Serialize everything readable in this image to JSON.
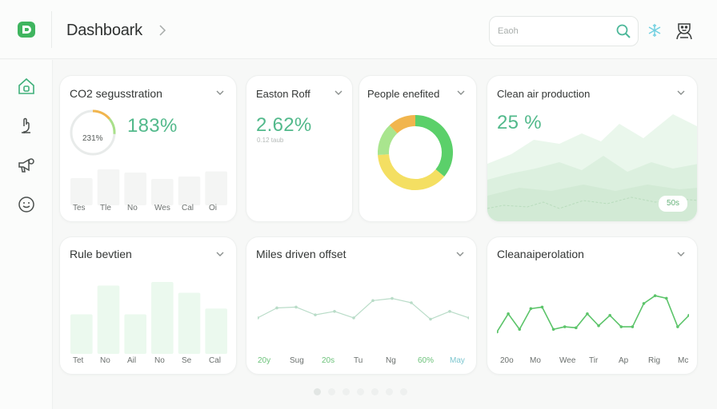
{
  "header": {
    "title": "Dashboark",
    "search_placeholder": "Eaoh"
  },
  "icons": {
    "logo": "app-logo",
    "breadcrumb": "chevron-right-icon",
    "search": "search-icon",
    "snow": "snowflake-icon",
    "user": "user-icon",
    "sidebar": [
      "home-icon",
      "hand-icon",
      "megaphone-icon",
      "smiley-icon"
    ]
  },
  "colors": {
    "accent": "#52b98b",
    "green": "#5bd06a",
    "yellow": "#f4df62",
    "orange": "#f1b54d",
    "pale_green": "#eaf7ec"
  },
  "cards": {
    "co2": {
      "title": "CO2 segusstration",
      "value": "183%",
      "ring_label": "231%",
      "ring_fraction": 0.14,
      "bar_values": [
        0.68,
        0.9,
        0.82,
        0.66,
        0.72,
        0.85
      ],
      "ticks": [
        "Tes",
        "Tle",
        "No",
        "Wes",
        "Cal",
        "Oi"
      ]
    },
    "eastern": {
      "title": "Easton Roff",
      "value": "2.62%",
      "sub": "0.12 taub"
    },
    "people": {
      "title": "People enefited",
      "donut": [
        {
          "name": "green",
          "value": 0.36,
          "color": "#5bd06a"
        },
        {
          "name": "yellow",
          "value": 0.38,
          "color": "#f4df62"
        },
        {
          "name": "lightgreen",
          "value": 0.14,
          "color": "#a9e58e"
        },
        {
          "name": "orange",
          "value": 0.12,
          "color": "#f1b54d"
        }
      ]
    },
    "clean_air": {
      "title": "Clean air production",
      "value": "25 %",
      "badge": "50s"
    },
    "rule": {
      "title": "Rule bevtien",
      "bar_values": [
        0.55,
        0.95,
        0.55,
        1.0,
        0.85,
        0.63
      ],
      "ticks": [
        "Tet",
        "No",
        "Ail",
        "No",
        "Se",
        "Cal"
      ]
    },
    "miles": {
      "title": "Miles driven offset",
      "line_values": [
        0.15,
        0.38,
        0.4,
        0.22,
        0.3,
        0.15,
        0.55,
        0.6,
        0.5,
        0.12,
        0.3,
        0.15
      ],
      "ticks": [
        {
          "t": "20y",
          "c": "green"
        },
        {
          "t": "Sug",
          "c": ""
        },
        {
          "t": "20s",
          "c": "green"
        },
        {
          "t": "Tu",
          "c": ""
        },
        {
          "t": "Ng",
          "c": ""
        },
        {
          "t": "60%",
          "c": "green"
        },
        {
          "t": "May",
          "c": "blue"
        }
      ]
    },
    "cleanai": {
      "title": "Cleanaiperolation",
      "line_values": [
        0.1,
        0.45,
        0.15,
        0.55,
        0.58,
        0.15,
        0.2,
        0.18,
        0.45,
        0.22,
        0.42,
        0.2,
        0.2,
        0.65,
        0.8,
        0.75,
        0.2,
        0.42
      ],
      "ticks": [
        "20o",
        "Mo",
        "Wee",
        "Tir",
        "Ap",
        "Rig",
        "Mc"
      ]
    }
  },
  "pager": {
    "count": 7,
    "active": 0
  }
}
